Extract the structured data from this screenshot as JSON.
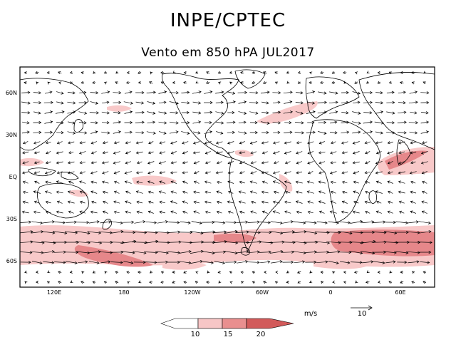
{
  "header": {
    "title": "INPE/CPTEC",
    "subtitle": "Vento em 850 hPA JUL2017"
  },
  "map": {
    "lat_labels": [
      "60N",
      "30N",
      "EQ",
      "30S",
      "60S"
    ],
    "lon_labels": [
      "120E",
      "180",
      "120W",
      "60W",
      "0",
      "60E"
    ],
    "units_label": "m/s",
    "reference_vector": {
      "label": "10",
      "value": 10
    },
    "colorbar": {
      "levels": [
        "10",
        "15",
        "20"
      ],
      "colors": [
        "#ffffff",
        "#f7c6c6",
        "#e98f8f",
        "#d25a5a"
      ]
    },
    "highlight_colors": {
      "light": "#f8c9c9",
      "dark": "#e6878a"
    }
  }
}
